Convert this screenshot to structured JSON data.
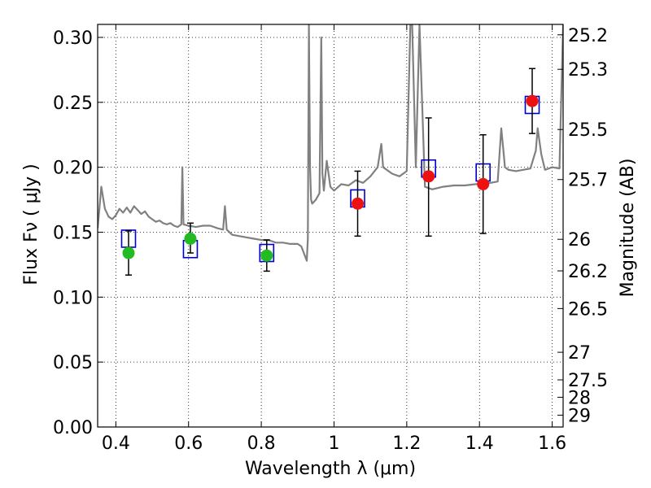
{
  "chart_data": {
    "type": "scatter",
    "xlabel": "Wavelength  λ (μm)",
    "ylabel": "Flux  Fν  ( μJy )",
    "y2label": "Magnitude (AB)",
    "xlim": [
      0.35,
      1.63
    ],
    "ylim": [
      0.0,
      0.31
    ],
    "grid": true,
    "x_ticks": [
      0.4,
      0.6,
      0.8,
      1.0,
      1.2,
      1.4,
      1.6
    ],
    "x_tick_labels": [
      "0.4",
      "0.6",
      "0.8",
      "1",
      "1.2",
      "1.4",
      "1.6"
    ],
    "y_ticks": [
      0.0,
      0.05,
      0.1,
      0.15,
      0.2,
      0.25,
      0.3
    ],
    "y_tick_labels": [
      "0.00",
      "0.05",
      "0.10",
      "0.15",
      "0.20",
      "0.25",
      "0.30"
    ],
    "mag_ticks": [
      "25.2",
      "25.3",
      "25.5",
      "25.7",
      "26",
      "26.2",
      "26.5",
      "27",
      "27.5",
      "28",
      "29"
    ],
    "series": [
      {
        "kind": "model_spectrum",
        "color": "#808080",
        "x": [
          0.35,
          0.36,
          0.37,
          0.38,
          0.39,
          0.4,
          0.41,
          0.42,
          0.43,
          0.44,
          0.45,
          0.46,
          0.47,
          0.48,
          0.49,
          0.5,
          0.51,
          0.52,
          0.53,
          0.54,
          0.55,
          0.56,
          0.57,
          0.58,
          0.583,
          0.586,
          0.6,
          0.62,
          0.64,
          0.66,
          0.68,
          0.695,
          0.7,
          0.705,
          0.72,
          0.74,
          0.76,
          0.78,
          0.8,
          0.82,
          0.84,
          0.86,
          0.88,
          0.9,
          0.91,
          0.925,
          0.928,
          0.931,
          0.934,
          0.937,
          0.94,
          0.95,
          0.96,
          0.965,
          0.968,
          0.972,
          0.98,
          0.99,
          1.0,
          1.02,
          1.04,
          1.06,
          1.08,
          1.1,
          1.12,
          1.13,
          1.135,
          1.14,
          1.16,
          1.18,
          1.2,
          1.21,
          1.215,
          1.225,
          1.235,
          1.25,
          1.27,
          1.3,
          1.33,
          1.36,
          1.39,
          1.41,
          1.43,
          1.45,
          1.46,
          1.465,
          1.47,
          1.48,
          1.5,
          1.52,
          1.54,
          1.555,
          1.56,
          1.57,
          1.58,
          1.6,
          1.62,
          1.63
        ],
        "y": [
          0.153,
          0.185,
          0.168,
          0.162,
          0.16,
          0.163,
          0.168,
          0.165,
          0.169,
          0.165,
          0.17,
          0.167,
          0.164,
          0.166,
          0.162,
          0.16,
          0.158,
          0.159,
          0.157,
          0.156,
          0.157,
          0.155,
          0.154,
          0.156,
          0.2,
          0.156,
          0.155,
          0.154,
          0.155,
          0.155,
          0.153,
          0.152,
          0.17,
          0.152,
          0.148,
          0.147,
          0.146,
          0.145,
          0.144,
          0.144,
          0.142,
          0.142,
          0.141,
          0.141,
          0.139,
          0.128,
          0.145,
          0.31,
          0.2,
          0.175,
          0.172,
          0.175,
          0.18,
          0.3,
          0.195,
          0.182,
          0.205,
          0.185,
          0.182,
          0.187,
          0.186,
          0.19,
          0.188,
          0.193,
          0.2,
          0.218,
          0.2,
          0.199,
          0.195,
          0.193,
          0.197,
          0.31,
          0.31,
          0.2,
          0.31,
          0.185,
          0.183,
          0.185,
          0.186,
          0.186,
          0.187,
          0.187,
          0.188,
          0.189,
          0.23,
          0.215,
          0.2,
          0.198,
          0.197,
          0.198,
          0.199,
          0.213,
          0.23,
          0.21,
          0.198,
          0.2,
          0.199,
          0.31
        ]
      },
      {
        "kind": "model_bandpass_flux",
        "marker": "open-square",
        "color": "#0000cc",
        "x": [
          0.435,
          0.605,
          0.815,
          1.065,
          1.26,
          1.41,
          1.545
        ],
        "y": [
          0.145,
          0.137,
          0.134,
          0.176,
          0.199,
          0.196,
          0.248
        ]
      },
      {
        "kind": "observed_flux_optical",
        "marker": "filled-circle",
        "color": "#22bb22",
        "x": [
          0.435,
          0.605,
          0.815
        ],
        "y": [
          0.134,
          0.145,
          0.132
        ],
        "yerr_low": [
          0.117,
          0.134,
          0.12
        ],
        "yerr_high": [
          0.151,
          0.157,
          0.144
        ]
      },
      {
        "kind": "observed_flux_nir",
        "marker": "filled-circle",
        "color": "#ee1111",
        "x": [
          1.065,
          1.26,
          1.41,
          1.545
        ],
        "y": [
          0.172,
          0.193,
          0.187,
          0.251
        ],
        "yerr_low": [
          0.147,
          0.147,
          0.149,
          0.226
        ],
        "yerr_high": [
          0.197,
          0.238,
          0.225,
          0.276
        ]
      }
    ]
  }
}
